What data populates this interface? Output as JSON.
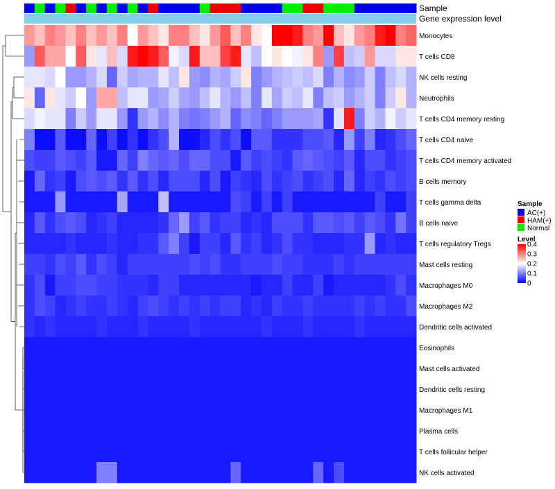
{
  "chart_data": {
    "type": "heatmap",
    "title": "",
    "n_samples": 38,
    "value_range": [
      0,
      0.4
    ],
    "annotation_tracks": [
      {
        "name": "Sample"
      },
      {
        "name": "Gene expression level"
      }
    ],
    "sample_groups": [
      "AC(+)",
      "Normal",
      "AC(+)",
      "Normal",
      "HAM(+)",
      "AC(+)",
      "Normal",
      "AC(+)",
      "Normal",
      "AC(+)",
      "Normal",
      "AC(+)",
      "HAM(+)",
      "AC(+)",
      "AC(+)",
      "AC(+)",
      "AC(+)",
      "Normal",
      "HAM(+)",
      "HAM(+)",
      "HAM(+)",
      "AC(+)",
      "AC(+)",
      "AC(+)",
      "AC(+)",
      "Normal",
      "Normal",
      "HAM(+)",
      "HAM(+)",
      "Normal",
      "Normal",
      "Normal",
      "AC(+)",
      "AC(+)",
      "AC(+)",
      "AC(+)",
      "AC(+)",
      "AC(+)"
    ],
    "row_labels": [
      "Monocytes",
      "T cells CD8",
      "NK cells resting",
      "Neutrophils",
      "T cells CD4 memory resting",
      "T cells CD4 naive",
      "T cells CD4 memory activated",
      "B cells memory",
      "T cells gamma delta",
      "B cells naive",
      "T cells regulatory  Tregs",
      "Mast cells resting",
      "Macrophages M0",
      "Macrophages M2",
      "Dendritic cells activated",
      "Eosinophils",
      "Mast cells activated",
      "Dendritic cells resting",
      "Macrophages M1",
      "Plasma cells",
      "T cells follicular helper",
      "NK cells activated"
    ],
    "values": [
      [
        0.28,
        0.25,
        0.3,
        0.28,
        0.25,
        0.3,
        0.25,
        0.28,
        0.25,
        0.3,
        0.2,
        0.28,
        0.25,
        0.22,
        0.3,
        0.3,
        0.25,
        0.22,
        0.28,
        0.33,
        0.25,
        0.3,
        0.22,
        0.2,
        0.4,
        0.4,
        0.38,
        0.3,
        0.28,
        0.4,
        0.25,
        0.22,
        0.28,
        0.3,
        0.38,
        0.4,
        0.3,
        0.32
      ],
      [
        0.12,
        0.33,
        0.27,
        0.27,
        0.2,
        0.33,
        0.22,
        0.18,
        0.25,
        0.17,
        0.38,
        0.4,
        0.38,
        0.33,
        0.19,
        0.17,
        0.38,
        0.25,
        0.25,
        0.35,
        0.38,
        0.18,
        0.15,
        0.2,
        0.22,
        0.2,
        0.19,
        0.22,
        0.3,
        0.12,
        0.35,
        0.15,
        0.16,
        0.28,
        0.17,
        0.17,
        0.22,
        0.22
      ],
      [
        0.18,
        0.18,
        0.17,
        0.2,
        0.12,
        0.12,
        0.14,
        0.17,
        0.08,
        0.16,
        0.13,
        0.14,
        0.14,
        0.18,
        0.15,
        0.22,
        0.12,
        0.11,
        0.14,
        0.13,
        0.16,
        0.22,
        0.1,
        0.12,
        0.14,
        0.15,
        0.16,
        0.15,
        0.17,
        0.1,
        0.14,
        0.11,
        0.12,
        0.16,
        0.1,
        0.15,
        0.17,
        0.14
      ],
      [
        0.22,
        0.08,
        0.22,
        0.18,
        0.16,
        0.2,
        0.12,
        0.27,
        0.27,
        0.15,
        0.18,
        0.18,
        0.12,
        0.13,
        0.16,
        0.13,
        0.12,
        0.15,
        0.18,
        0.14,
        0.12,
        0.15,
        0.1,
        0.18,
        0.13,
        0.16,
        0.15,
        0.18,
        0.1,
        0.15,
        0.16,
        0.12,
        0.14,
        0.16,
        0.1,
        0.16,
        0.22,
        0.14
      ],
      [
        0.17,
        0.19,
        0.18,
        0.18,
        0.1,
        0.16,
        0.12,
        0.18,
        0.18,
        0.12,
        0.04,
        0.12,
        0.14,
        0.11,
        0.14,
        0.1,
        0.09,
        0.1,
        0.12,
        0.14,
        0.08,
        0.11,
        0.1,
        0.08,
        0.1,
        0.12,
        0.12,
        0.12,
        0.13,
        0.04,
        0.18,
        0.38,
        0.1,
        0.16,
        0.14,
        0.19,
        0.16,
        0.18
      ],
      [
        0.1,
        0.01,
        0.01,
        0.07,
        0.01,
        0.01,
        0.08,
        0.01,
        0.05,
        0.01,
        0.04,
        0.01,
        0.04,
        0.06,
        0.14,
        0.01,
        0.01,
        0.03,
        0.06,
        0.04,
        0.06,
        0.01,
        0.07,
        0.07,
        0.04,
        0.04,
        0.04,
        0.06,
        0.06,
        0.07,
        0.03,
        0.12,
        0.05,
        0.1,
        0.03,
        0.04,
        0.06,
        0.08
      ],
      [
        0.06,
        0.05,
        0.05,
        0.07,
        0.06,
        0.05,
        0.07,
        0.02,
        0.02,
        0.08,
        0.05,
        0.1,
        0.08,
        0.07,
        0.08,
        0.06,
        0.08,
        0.08,
        0.06,
        0.06,
        0.02,
        0.07,
        0.05,
        0.06,
        0.05,
        0.04,
        0.07,
        0.08,
        0.07,
        0.06,
        0.05,
        0.07,
        0.03,
        0.06,
        0.06,
        0.04,
        0.05,
        0.06
      ],
      [
        0.02,
        0.08,
        0.04,
        0.05,
        0.02,
        0.06,
        0.07,
        0.06,
        0.07,
        0.04,
        0.07,
        0.04,
        0.06,
        0.03,
        0.06,
        0.06,
        0.06,
        0.03,
        0.06,
        0.02,
        0.05,
        0.04,
        0.03,
        0.06,
        0.04,
        0.05,
        0.06,
        0.04,
        0.05,
        0.06,
        0.03,
        0.08,
        0.03,
        0.05,
        0.04,
        0.06,
        0.05,
        0.06
      ],
      [
        0.02,
        0.02,
        0.02,
        0.12,
        0.02,
        0.02,
        0.02,
        0.02,
        0.02,
        0.13,
        0.02,
        0.02,
        0.02,
        0.15,
        0.02,
        0.02,
        0.02,
        0.02,
        0.02,
        0.02,
        0.06,
        0.05,
        0.02,
        0.05,
        0.02,
        0.05,
        0.02,
        0.02,
        0.02,
        0.02,
        0.02,
        0.02,
        0.02,
        0.02,
        0.05,
        0.02,
        0.02,
        0.05
      ],
      [
        0.03,
        0.07,
        0.04,
        0.06,
        0.07,
        0.06,
        0.03,
        0.04,
        0.05,
        0.03,
        0.03,
        0.03,
        0.03,
        0.04,
        0.08,
        0.12,
        0.05,
        0.07,
        0.04,
        0.05,
        0.05,
        0.03,
        0.04,
        0.03,
        0.06,
        0.06,
        0.06,
        0.04,
        0.07,
        0.07,
        0.06,
        0.07,
        0.05,
        0.07,
        0.06,
        0.04,
        0.09,
        0.05
      ],
      [
        0.03,
        0.03,
        0.03,
        0.03,
        0.04,
        0.03,
        0.03,
        0.03,
        0.04,
        0.03,
        0.03,
        0.04,
        0.04,
        0.07,
        0.1,
        0.05,
        0.02,
        0.05,
        0.05,
        0.03,
        0.07,
        0.04,
        0.05,
        0.03,
        0.04,
        0.06,
        0.04,
        0.04,
        0.03,
        0.03,
        0.03,
        0.04,
        0.04,
        0.12,
        0.03,
        0.04,
        0.03,
        0.03
      ],
      [
        0.05,
        0.05,
        0.04,
        0.06,
        0.05,
        0.07,
        0.04,
        0.06,
        0.05,
        0.03,
        0.05,
        0.05,
        0.05,
        0.05,
        0.05,
        0.05,
        0.06,
        0.05,
        0.06,
        0.04,
        0.04,
        0.05,
        0.05,
        0.05,
        0.06,
        0.05,
        0.05,
        0.04,
        0.04,
        0.04,
        0.05,
        0.04,
        0.05,
        0.05,
        0.05,
        0.05,
        0.05,
        0.05
      ],
      [
        0.04,
        0.06,
        0.02,
        0.05,
        0.05,
        0.06,
        0.06,
        0.05,
        0.05,
        0.04,
        0.04,
        0.04,
        0.03,
        0.05,
        0.05,
        0.03,
        0.03,
        0.03,
        0.03,
        0.03,
        0.03,
        0.03,
        0.02,
        0.03,
        0.03,
        0.05,
        0.03,
        0.03,
        0.05,
        0.02,
        0.03,
        0.03,
        0.03,
        0.03,
        0.03,
        0.04,
        0.06,
        0.04
      ],
      [
        0.04,
        0.06,
        0.05,
        0.03,
        0.04,
        0.05,
        0.04,
        0.04,
        0.05,
        0.04,
        0.03,
        0.05,
        0.06,
        0.05,
        0.04,
        0.05,
        0.04,
        0.05,
        0.04,
        0.05,
        0.05,
        0.03,
        0.04,
        0.03,
        0.05,
        0.04,
        0.04,
        0.05,
        0.04,
        0.04,
        0.04,
        0.04,
        0.05,
        0.04,
        0.05,
        0.04,
        0.04,
        0.06
      ],
      [
        0.04,
        0.03,
        0.04,
        0.03,
        0.03,
        0.03,
        0.03,
        0.04,
        0.03,
        0.03,
        0.03,
        0.04,
        0.03,
        0.03,
        0.03,
        0.03,
        0.04,
        0.03,
        0.03,
        0.03,
        0.03,
        0.03,
        0.03,
        0.04,
        0.03,
        0.03,
        0.03,
        0.04,
        0.03,
        0.03,
        0.03,
        0.03,
        0.04,
        0.03,
        0.03,
        0.03,
        0.03,
        0.03
      ],
      [
        0.02,
        0.02,
        0.02,
        0.02,
        0.02,
        0.02,
        0.02,
        0.02,
        0.02,
        0.02,
        0.02,
        0.02,
        0.02,
        0.02,
        0.02,
        0.02,
        0.02,
        0.02,
        0.02,
        0.02,
        0.02,
        0.02,
        0.02,
        0.02,
        0.02,
        0.02,
        0.02,
        0.02,
        0.02,
        0.02,
        0.02,
        0.02,
        0.02,
        0.02,
        0.02,
        0.02,
        0.02,
        0.02
      ],
      [
        0.02,
        0.02,
        0.02,
        0.02,
        0.02,
        0.02,
        0.02,
        0.02,
        0.02,
        0.02,
        0.02,
        0.02,
        0.02,
        0.02,
        0.02,
        0.02,
        0.02,
        0.02,
        0.02,
        0.02,
        0.02,
        0.02,
        0.02,
        0.02,
        0.02,
        0.02,
        0.02,
        0.02,
        0.02,
        0.02,
        0.02,
        0.02,
        0.02,
        0.02,
        0.02,
        0.02,
        0.02,
        0.02
      ],
      [
        0.02,
        0.02,
        0.02,
        0.02,
        0.02,
        0.02,
        0.02,
        0.02,
        0.02,
        0.02,
        0.02,
        0.02,
        0.02,
        0.02,
        0.02,
        0.02,
        0.02,
        0.02,
        0.02,
        0.02,
        0.02,
        0.02,
        0.02,
        0.02,
        0.02,
        0.02,
        0.02,
        0.02,
        0.02,
        0.02,
        0.02,
        0.02,
        0.02,
        0.02,
        0.02,
        0.02,
        0.02,
        0.02
      ],
      [
        0.02,
        0.02,
        0.02,
        0.02,
        0.02,
        0.02,
        0.02,
        0.02,
        0.02,
        0.02,
        0.02,
        0.02,
        0.02,
        0.02,
        0.02,
        0.02,
        0.02,
        0.02,
        0.02,
        0.02,
        0.02,
        0.02,
        0.02,
        0.02,
        0.02,
        0.02,
        0.02,
        0.02,
        0.02,
        0.02,
        0.02,
        0.02,
        0.02,
        0.02,
        0.02,
        0.02,
        0.02,
        0.02
      ],
      [
        0.02,
        0.02,
        0.02,
        0.02,
        0.02,
        0.02,
        0.02,
        0.02,
        0.02,
        0.02,
        0.02,
        0.02,
        0.02,
        0.02,
        0.02,
        0.02,
        0.02,
        0.02,
        0.02,
        0.02,
        0.02,
        0.02,
        0.02,
        0.02,
        0.02,
        0.02,
        0.02,
        0.02,
        0.02,
        0.02,
        0.02,
        0.02,
        0.02,
        0.02,
        0.02,
        0.02,
        0.02,
        0.02
      ],
      [
        0.02,
        0.02,
        0.02,
        0.02,
        0.02,
        0.02,
        0.02,
        0.02,
        0.02,
        0.02,
        0.02,
        0.02,
        0.02,
        0.02,
        0.02,
        0.02,
        0.02,
        0.02,
        0.02,
        0.02,
        0.02,
        0.02,
        0.02,
        0.02,
        0.02,
        0.02,
        0.02,
        0.02,
        0.02,
        0.02,
        0.02,
        0.02,
        0.02,
        0.02,
        0.02,
        0.02,
        0.02,
        0.02
      ],
      [
        0.02,
        0.02,
        0.02,
        0.02,
        0.02,
        0.02,
        0.02,
        0.1,
        0.1,
        0.02,
        0.02,
        0.02,
        0.02,
        0.02,
        0.02,
        0.02,
        0.02,
        0.02,
        0.02,
        0.02,
        0.08,
        0.02,
        0.02,
        0.02,
        0.02,
        0.02,
        0.02,
        0.02,
        0.08,
        0.02,
        0.06,
        0.02,
        0.02,
        0.02,
        0.02,
        0.02,
        0.02,
        0.02
      ]
    ],
    "legend": {
      "sample_title": "Sample",
      "sample_entries": [
        {
          "label": "AC(+)",
          "color": "#0000ee"
        },
        {
          "label": "HAM(+)",
          "color": "#ee0000"
        },
        {
          "label": "Normal",
          "color": "#00ee00"
        }
      ],
      "level_title": "Level",
      "level_ticks": [
        "0.4",
        "0.3",
        "0.2",
        "0.1",
        "0"
      ],
      "level_tick_values": [
        0.4,
        0.3,
        0.2,
        0.1,
        0
      ],
      "placement": "right"
    },
    "colors": {
      "low": "#0000ff",
      "mid": "#ffffff",
      "high": "#ff0000",
      "expression_track": "#87ceeb"
    }
  }
}
